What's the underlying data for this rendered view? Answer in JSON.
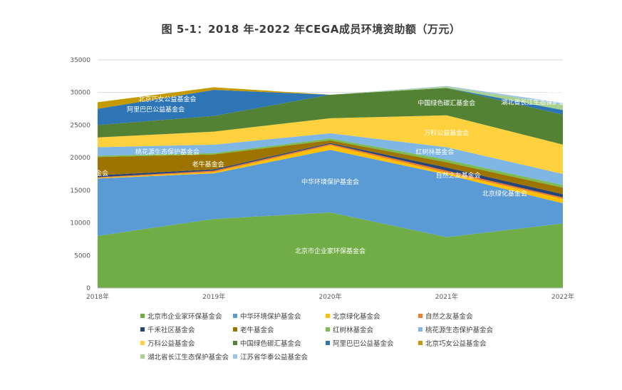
{
  "title": "图 5-1：2018 年-2022 年CEGA成员环境资助额（万元）",
  "chart_data": {
    "type": "area",
    "stacked": true,
    "x": [
      "2018年",
      "2019年",
      "2020年",
      "2021年",
      "2022年"
    ],
    "ylim": [
      0,
      35000
    ],
    "yticks": [
      "0",
      "5000",
      "10000",
      "15000",
      "20000",
      "25000",
      "30000",
      "35000"
    ],
    "grid": true,
    "legend_position": "bottom",
    "series": [
      {
        "name": "北京市企业家环保基金会",
        "color": "#70ad47",
        "values": [
          8000,
          10600,
          11600,
          7800,
          9900
        ]
      },
      {
        "name": "中华环境保护基金会",
        "color": "#5b9bd5",
        "values": [
          8800,
          7000,
          9600,
          9600,
          3100
        ]
      },
      {
        "name": "北京绿化基金会",
        "color": "#ffc000",
        "values": [
          100,
          200,
          700,
          300,
          700
        ]
      },
      {
        "name": "自然之友基金会",
        "color": "#ed7d31",
        "values": [
          100,
          200,
          200,
          300,
          200
        ]
      },
      {
        "name": "千禾社区基金会",
        "color": "#264478",
        "values": [
          300,
          200,
          150,
          500,
          500
        ]
      },
      {
        "name": "老牛基金会",
        "color": "#9e7400",
        "values": [
          2800,
          2300,
          400,
          800,
          1000
        ]
      },
      {
        "name": "红树林基金会",
        "color": "#7cba52",
        "values": [
          200,
          200,
          300,
          400,
          400
        ]
      },
      {
        "name": "桃花源生态保护基金会",
        "color": "#7fb6e3",
        "values": [
          1300,
          1300,
          800,
          1900,
          1700
        ]
      },
      {
        "name": "万科公益基金会",
        "color": "#ffd13f",
        "values": [
          1500,
          2000,
          2300,
          4900,
          4500
        ]
      },
      {
        "name": "中国绿色碳汇基金会",
        "color": "#548235",
        "values": [
          1900,
          2400,
          3600,
          4200,
          4600
        ]
      },
      {
        "name": "阿里巴巴公益基金会",
        "color": "#2e75b6",
        "values": [
          2500,
          4000,
          0,
          0,
          700
        ]
      },
      {
        "name": "北京巧女公益基金会",
        "color": "#c49a00",
        "values": [
          1000,
          400,
          0,
          0,
          0
        ]
      },
      {
        "name": "湖北省长江生态保护基金会",
        "color": "#a9d18e",
        "values": [
          0,
          0,
          0,
          200,
          800
        ]
      },
      {
        "name": "江苏省华泰公益基金会",
        "color": "#9dc3e6",
        "values": [
          0,
          0,
          0,
          100,
          300
        ]
      }
    ],
    "annotations": [
      {
        "text": "北京巧女公益基金会",
        "at": [
          0.6,
          29000
        ]
      },
      {
        "text": "阿里巴巴公益基金会",
        "at": [
          0.5,
          27400
        ]
      },
      {
        "text": "桃花源生态保护基金会",
        "at": [
          0.6,
          20900
        ]
      },
      {
        "text": "老牛基金会",
        "at": [
          0.95,
          19000
        ]
      },
      {
        "text": "千禾社区基金会",
        "at": [
          -0.1,
          17600
        ]
      },
      {
        "text": "中华环境保护基金会",
        "at": [
          2.0,
          16300
        ]
      },
      {
        "text": "北京市企业家环保基金会",
        "at": [
          2.0,
          5700
        ]
      },
      {
        "text": "中国绿色碳汇基金会",
        "at": [
          3.0,
          28400
        ]
      },
      {
        "text": "万科公益基金会",
        "at": [
          3.0,
          23800
        ]
      },
      {
        "text": "红树林基金会",
        "at": [
          2.9,
          20900
        ]
      },
      {
        "text": "自然之友基金会",
        "at": [
          3.1,
          17300
        ]
      },
      {
        "text": "北京绿化基金会",
        "at": [
          3.5,
          14500
        ]
      },
      {
        "text": "江苏省华泰公益基金会",
        "at": [
          3.8,
          30000
        ]
      },
      {
        "text": "湖北省长江生态保护基金会",
        "at": [
          3.8,
          28500
        ]
      }
    ]
  }
}
